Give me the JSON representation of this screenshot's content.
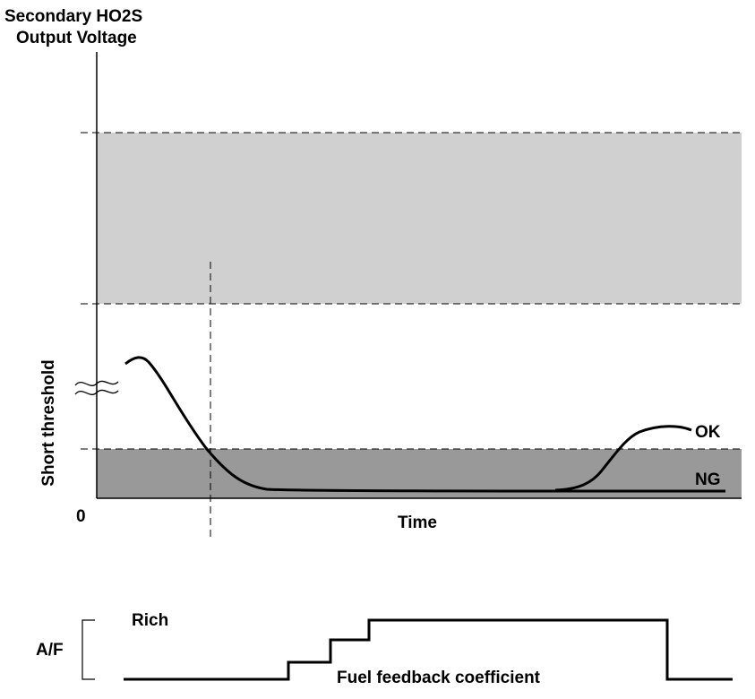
{
  "title_line1": "Secondary HO2S",
  "title_line2": "Output Voltage",
  "ylabel": "Short threshold",
  "origin_label": "0",
  "xlabel": "Time",
  "curve_ok_label": "OK",
  "curve_ng_label": "NG",
  "af": {
    "label": "A/F",
    "rich_label": "Rich",
    "coefficient_label": "Fuel feedback coefficient"
  },
  "colors": {
    "upper_band": "#d0d0d0",
    "lower_band": "#999999",
    "line": "#000000"
  }
}
